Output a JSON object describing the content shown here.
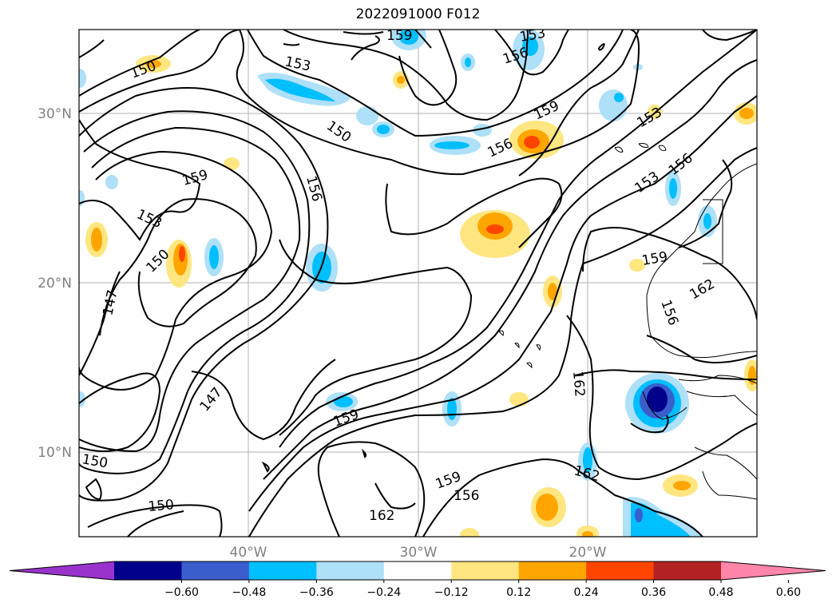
{
  "title": "2022091000 F012",
  "lat_labels": [
    "30°N",
    "20°N",
    "10°N"
  ],
  "lon_labels": [
    "40°W",
    "30°W",
    "20°W"
  ],
  "colorbar": {
    "ticks": [
      "−0.60",
      "−0.48",
      "−0.36",
      "−0.24",
      "−0.12",
      "0.12",
      "0.24",
      "0.36",
      "0.48",
      "0.60"
    ],
    "colors": [
      "#9933cc",
      "#00008b",
      "#3a5fcd",
      "#00bfff",
      "#aee0f8",
      "#ffffff",
      "#ffe680",
      "#ffa500",
      "#ff4500",
      "#b22222",
      "#ff85aa"
    ]
  },
  "contour_labels": [
    {
      "text": "159"
    },
    {
      "text": "153"
    },
    {
      "text": "156"
    },
    {
      "text": "153"
    },
    {
      "text": "150"
    },
    {
      "text": "150"
    },
    {
      "text": "159"
    },
    {
      "text": "156"
    },
    {
      "text": "153"
    },
    {
      "text": "159"
    },
    {
      "text": "156"
    },
    {
      "text": "153"
    },
    {
      "text": "156"
    },
    {
      "text": "150"
    },
    {
      "text": "147"
    },
    {
      "text": "159"
    },
    {
      "text": "153"
    },
    {
      "text": "156"
    },
    {
      "text": "162"
    },
    {
      "text": "147"
    },
    {
      "text": "159"
    },
    {
      "text": "150"
    },
    {
      "text": "150"
    },
    {
      "text": "162"
    },
    {
      "text": "159"
    },
    {
      "text": "156"
    },
    {
      "text": "162"
    }
  ]
}
